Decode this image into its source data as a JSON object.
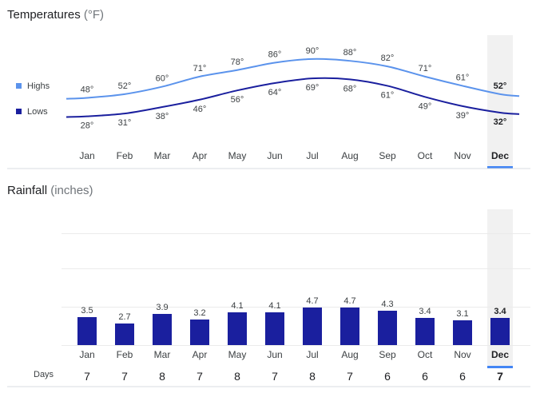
{
  "temperatures": {
    "title": "Temperatures",
    "unit": "(°F)",
    "legend": [
      {
        "name": "Highs",
        "color": "#5b93ec"
      },
      {
        "name": "Lows",
        "color": "#1a1f9e"
      }
    ]
  },
  "rainfall": {
    "title": "Rainfall",
    "unit": "(inches)"
  },
  "days_label": "Days",
  "selected_month": "Dec",
  "chart_data": [
    {
      "type": "line",
      "title": "Temperatures (°F)",
      "categories": [
        "Jan",
        "Feb",
        "Mar",
        "Apr",
        "May",
        "Jun",
        "Jul",
        "Aug",
        "Sep",
        "Oct",
        "Nov",
        "Dec"
      ],
      "series": [
        {
          "name": "Highs",
          "color": "#5b93ec",
          "values": [
            48,
            52,
            60,
            71,
            78,
            86,
            90,
            88,
            82,
            71,
            61,
            52
          ],
          "labels": [
            "48°",
            "52°",
            "60°",
            "71°",
            "78°",
            "86°",
            "90°",
            "88°",
            "82°",
            "71°",
            "61°",
            "52°"
          ]
        },
        {
          "name": "Lows",
          "color": "#1a1f9e",
          "values": [
            28,
            31,
            38,
            46,
            56,
            64,
            69,
            68,
            61,
            49,
            39,
            32
          ],
          "labels": [
            "28°",
            "31°",
            "38°",
            "46°",
            "56°",
            "64°",
            "69°",
            "68°",
            "61°",
            "49°",
            "39°",
            "32°"
          ]
        }
      ],
      "legend": "left"
    },
    {
      "type": "bar",
      "title": "Rainfall (inches)",
      "categories": [
        "Jan",
        "Feb",
        "Mar",
        "Apr",
        "May",
        "Jun",
        "Jul",
        "Aug",
        "Sep",
        "Oct",
        "Nov",
        "Dec"
      ],
      "values": [
        3.5,
        2.7,
        3.9,
        3.2,
        4.1,
        4.1,
        4.7,
        4.7,
        4.3,
        3.4,
        3.1,
        3.4
      ],
      "labels": [
        "3.5",
        "2.7",
        "3.9",
        "3.2",
        "4.1",
        "4.1",
        "4.7",
        "4.7",
        "4.3",
        "3.4",
        "3.1",
        "3.4"
      ],
      "ylim": [
        0,
        14
      ],
      "color": "#1a1f9e",
      "grid": true
    },
    {
      "type": "table",
      "title": "Days",
      "categories": [
        "Jan",
        "Feb",
        "Mar",
        "Apr",
        "May",
        "Jun",
        "Jul",
        "Aug",
        "Sep",
        "Oct",
        "Nov",
        "Dec"
      ],
      "values": [
        7,
        7,
        8,
        7,
        8,
        7,
        8,
        7,
        6,
        6,
        6,
        7
      ],
      "labels": [
        "7",
        "7",
        "8",
        "7",
        "8",
        "7",
        "8",
        "7",
        "6",
        "6",
        "6",
        "7"
      ]
    }
  ]
}
